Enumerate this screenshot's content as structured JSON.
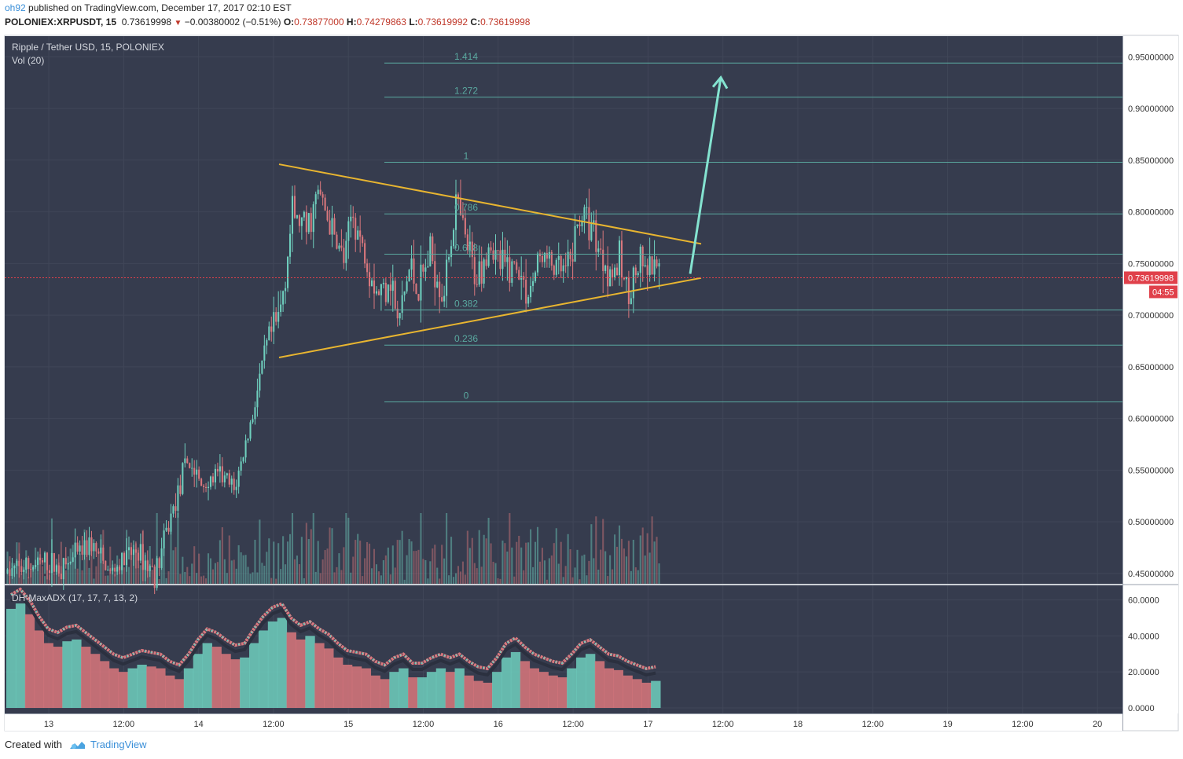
{
  "header": {
    "user": "oh92",
    "published": " published on TradingView.com, December 17, 2017 02:10 EST",
    "symbol": "POLONIEX:XRPUSDT, 15",
    "last": "0.73619998",
    "change": "−0.00380002 (−0.51%)",
    "o_label": "O:",
    "o_val": "0.73877000",
    "h_label": "H:",
    "h_val": "0.74279863",
    "l_label": "L:",
    "l_val": "0.73619992",
    "c_label": "C:",
    "c_val": "0.73619998"
  },
  "footer": {
    "created_with": "Created with",
    "brand": "TradingView"
  },
  "colors": {
    "panel_bg": "#363c4e",
    "grid": "#404658",
    "up": "#6fcfbe",
    "down": "#d9777d",
    "fib": "#5aa9a0",
    "trend": "#e8b530",
    "arrow": "#84e3d0",
    "price_tag": "#e0404a"
  },
  "chart_data": [
    {
      "type": "candlestick",
      "title": "Ripple / Tether USD, 15, POLONIEX",
      "volume_label": "Vol (20)",
      "ylim": [
        0.44,
        0.97
      ],
      "y_ticks": [
        "0.95000000",
        "0.90000000",
        "0.85000000",
        "0.80000000",
        "0.75000000",
        "0.70000000",
        "0.65000000",
        "0.60000000",
        "0.55000000",
        "0.50000000",
        "0.45000000"
      ],
      "x_ticks": [
        "13",
        "12:00",
        "14",
        "12:00",
        "15",
        "12:00",
        "16",
        "12:00",
        "17",
        "12:00",
        "18",
        "12:00",
        "19",
        "12:00",
        "20"
      ],
      "current_price": "0.73619998",
      "countdown": "04:55",
      "price_path": [
        [
          0,
          0.45
        ],
        [
          0.06,
          0.46
        ],
        [
          0.09,
          0.455
        ],
        [
          0.13,
          0.48
        ],
        [
          0.16,
          0.45
        ],
        [
          0.2,
          0.472
        ],
        [
          0.23,
          0.45
        ],
        [
          0.26,
          0.52
        ],
        [
          0.28,
          0.56
        ],
        [
          0.3,
          0.535
        ],
        [
          0.33,
          0.545
        ],
        [
          0.35,
          0.53
        ],
        [
          0.37,
          0.58
        ],
        [
          0.4,
          0.67
        ],
        [
          0.42,
          0.7
        ],
        [
          0.44,
          0.8
        ],
        [
          0.46,
          0.78
        ],
        [
          0.48,
          0.82
        ],
        [
          0.5,
          0.78
        ],
        [
          0.52,
          0.75
        ],
        [
          0.53,
          0.8
        ],
        [
          0.55,
          0.76
        ],
        [
          0.57,
          0.72
        ],
        [
          0.59,
          0.74
        ],
        [
          0.6,
          0.69
        ],
        [
          0.62,
          0.75
        ],
        [
          0.63,
          0.72
        ],
        [
          0.65,
          0.76
        ],
        [
          0.67,
          0.72
        ],
        [
          0.69,
          0.81
        ],
        [
          0.7,
          0.78
        ],
        [
          0.72,
          0.735
        ],
        [
          0.74,
          0.77
        ],
        [
          0.76,
          0.745
        ],
        [
          0.78,
          0.75
        ],
        [
          0.8,
          0.72
        ],
        [
          0.82,
          0.76
        ],
        [
          0.84,
          0.745
        ],
        [
          0.86,
          0.74
        ],
        [
          0.88,
          0.8
        ],
        [
          0.9,
          0.785
        ],
        [
          0.91,
          0.76
        ],
        [
          0.93,
          0.74
        ],
        [
          0.94,
          0.75
        ],
        [
          0.95,
          0.725
        ],
        [
          0.97,
          0.745
        ],
        [
          0.99,
          0.74
        ],
        [
          1.0,
          0.736
        ]
      ],
      "fib_levels": [
        {
          "label": "1.414",
          "price": 0.944
        },
        {
          "label": "1.272",
          "price": 0.911
        },
        {
          "label": "1",
          "price": 0.848
        },
        {
          "label": "0.786",
          "price": 0.798
        },
        {
          "label": "0.618",
          "price": 0.759
        },
        {
          "label": "0.382",
          "price": 0.705
        },
        {
          "label": "0.236",
          "price": 0.671
        },
        {
          "label": "0",
          "price": 0.616
        }
      ],
      "triangle_upper": [
        [
          0.0,
          0.846
        ],
        [
          1.0,
          0.769
        ]
      ],
      "triangle_lower": [
        [
          0.0,
          0.659
        ],
        [
          1.0,
          0.736
        ]
      ],
      "projection_arrow": [
        [
          0.0,
          0.74
        ],
        [
          1.0,
          0.93
        ]
      ]
    },
    {
      "type": "area",
      "title": "DH-MaxADX (17, 17, 7, 13, 2)",
      "ylim": [
        0,
        65
      ],
      "y_ticks": [
        "60.0000",
        "40.0000",
        "20.0000",
        "0.0000"
      ],
      "values": [
        55,
        58,
        52,
        43,
        36,
        34,
        37,
        38,
        34,
        30,
        26,
        22,
        20,
        22,
        24,
        23,
        22,
        18,
        16,
        22,
        30,
        36,
        34,
        30,
        27,
        28,
        36,
        43,
        48,
        50,
        42,
        38,
        40,
        36,
        33,
        28,
        24,
        23,
        22,
        18,
        16,
        20,
        22,
        17,
        17,
        20,
        22,
        20,
        22,
        18,
        15,
        14,
        20,
        28,
        31,
        26,
        22,
        20,
        18,
        17,
        22,
        28,
        30,
        26,
        22,
        21,
        18,
        16,
        14,
        15
      ]
    }
  ]
}
